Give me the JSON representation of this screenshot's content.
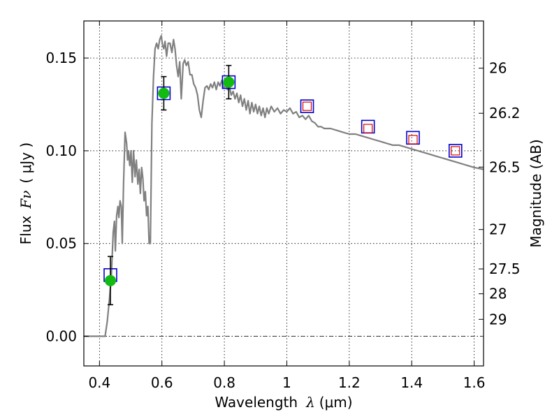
{
  "chart_data": {
    "type": "scatter",
    "xlabel": {
      "text": "Wavelength",
      "symbol": "λ",
      "unit": "(μm)"
    },
    "ylabel": {
      "text": "Flux",
      "symbol": "Fν",
      "unit": "( μJy )"
    },
    "ylabel_right": "Magnitude (AB)",
    "xlim": [
      0.35,
      1.63
    ],
    "ylim": [
      -0.016,
      0.17
    ],
    "grid": true,
    "x_ticks": [
      {
        "v": 0.4,
        "label": "0.4"
      },
      {
        "v": 0.6,
        "label": "0.6"
      },
      {
        "v": 0.8,
        "label": "0.8"
      },
      {
        "v": 1.0,
        "label": "1"
      },
      {
        "v": 1.2,
        "label": "1.2"
      },
      {
        "v": 1.4,
        "label": "1.4"
      },
      {
        "v": 1.6,
        "label": "1.6"
      }
    ],
    "y_ticks": [
      {
        "v": 0.0,
        "label": "0.00"
      },
      {
        "v": 0.05,
        "label": "0.05"
      },
      {
        "v": 0.1,
        "label": "0.10"
      },
      {
        "v": 0.15,
        "label": "0.15"
      }
    ],
    "right_ticks": [
      {
        "label": "26",
        "mag": 26.0
      },
      {
        "label": "26.2",
        "mag": 26.2
      },
      {
        "label": "26.5",
        "mag": 26.5
      },
      {
        "label": "27",
        "mag": 27.0
      },
      {
        "label": "27.5",
        "mag": 27.5
      },
      {
        "label": "28",
        "mag": 28.0
      },
      {
        "label": "29",
        "mag": 29.0
      }
    ],
    "model_sed": {
      "color": "#808080",
      "points": [
        [
          0.35,
          0.0
        ],
        [
          0.418,
          0.0
        ],
        [
          0.425,
          0.008
        ],
        [
          0.432,
          0.02
        ],
        [
          0.438,
          0.032
        ],
        [
          0.444,
          0.056
        ],
        [
          0.448,
          0.062
        ],
        [
          0.451,
          0.046
        ],
        [
          0.455,
          0.065
        ],
        [
          0.459,
          0.07
        ],
        [
          0.462,
          0.064
        ],
        [
          0.466,
          0.073
        ],
        [
          0.47,
          0.07
        ],
        [
          0.473,
          0.05
        ],
        [
          0.477,
          0.082
        ],
        [
          0.482,
          0.11
        ],
        [
          0.487,
          0.104
        ],
        [
          0.49,
          0.095
        ],
        [
          0.493,
          0.1
        ],
        [
          0.497,
          0.092
        ],
        [
          0.501,
          0.1
        ],
        [
          0.505,
          0.083
        ],
        [
          0.509,
          0.1
        ],
        [
          0.514,
          0.086
        ],
        [
          0.518,
          0.095
        ],
        [
          0.523,
          0.082
        ],
        [
          0.527,
          0.09
        ],
        [
          0.531,
          0.077
        ],
        [
          0.535,
          0.091
        ],
        [
          0.539,
          0.085
        ],
        [
          0.543,
          0.073
        ],
        [
          0.547,
          0.078
        ],
        [
          0.551,
          0.065
        ],
        [
          0.555,
          0.07
        ],
        [
          0.559,
          0.05
        ],
        [
          0.563,
          0.05
        ],
        [
          0.568,
          0.115
        ],
        [
          0.573,
          0.14
        ],
        [
          0.578,
          0.155
        ],
        [
          0.583,
          0.158
        ],
        [
          0.588,
          0.155
        ],
        [
          0.593,
          0.16
        ],
        [
          0.598,
          0.162
        ],
        [
          0.602,
          0.157
        ],
        [
          0.606,
          0.155
        ],
        [
          0.61,
          0.159
        ],
        [
          0.615,
          0.151
        ],
        [
          0.62,
          0.158
        ],
        [
          0.626,
          0.158
        ],
        [
          0.632,
          0.153
        ],
        [
          0.637,
          0.16
        ],
        [
          0.642,
          0.155
        ],
        [
          0.647,
          0.146
        ],
        [
          0.652,
          0.14
        ],
        [
          0.657,
          0.148
        ],
        [
          0.662,
          0.128
        ],
        [
          0.668,
          0.147
        ],
        [
          0.673,
          0.149
        ],
        [
          0.678,
          0.146
        ],
        [
          0.684,
          0.148
        ],
        [
          0.69,
          0.141
        ],
        [
          0.696,
          0.141
        ],
        [
          0.702,
          0.136
        ],
        [
          0.708,
          0.134
        ],
        [
          0.714,
          0.13
        ],
        [
          0.72,
          0.122
        ],
        [
          0.726,
          0.118
        ],
        [
          0.732,
          0.127
        ],
        [
          0.738,
          0.134
        ],
        [
          0.744,
          0.135
        ],
        [
          0.75,
          0.133
        ],
        [
          0.756,
          0.136
        ],
        [
          0.762,
          0.134
        ],
        [
          0.768,
          0.137
        ],
        [
          0.774,
          0.133
        ],
        [
          0.78,
          0.137
        ],
        [
          0.786,
          0.135
        ],
        [
          0.792,
          0.138
        ],
        [
          0.798,
          0.134
        ],
        [
          0.804,
          0.135
        ],
        [
          0.81,
          0.133
        ],
        [
          0.816,
          0.135
        ],
        [
          0.822,
          0.13
        ],
        [
          0.828,
          0.132
        ],
        [
          0.834,
          0.128
        ],
        [
          0.84,
          0.131
        ],
        [
          0.846,
          0.126
        ],
        [
          0.852,
          0.13
        ],
        [
          0.858,
          0.124
        ],
        [
          0.864,
          0.128
        ],
        [
          0.87,
          0.122
        ],
        [
          0.876,
          0.127
        ],
        [
          0.882,
          0.12
        ],
        [
          0.888,
          0.126
        ],
        [
          0.894,
          0.121
        ],
        [
          0.9,
          0.125
        ],
        [
          0.906,
          0.12
        ],
        [
          0.912,
          0.124
        ],
        [
          0.918,
          0.119
        ],
        [
          0.924,
          0.123
        ],
        [
          0.93,
          0.118
        ],
        [
          0.936,
          0.123
        ],
        [
          0.942,
          0.12
        ],
        [
          0.95,
          0.124
        ],
        [
          0.96,
          0.121
        ],
        [
          0.97,
          0.123
        ],
        [
          0.98,
          0.12
        ],
        [
          0.99,
          0.122
        ],
        [
          1.0,
          0.121
        ],
        [
          1.01,
          0.123
        ],
        [
          1.02,
          0.12
        ],
        [
          1.03,
          0.121
        ],
        [
          1.04,
          0.118
        ],
        [
          1.05,
          0.119
        ],
        [
          1.06,
          0.117
        ],
        [
          1.07,
          0.119
        ],
        [
          1.08,
          0.116
        ],
        [
          1.09,
          0.115
        ],
        [
          1.1,
          0.113
        ],
        [
          1.11,
          0.113
        ],
        [
          1.12,
          0.112
        ],
        [
          1.14,
          0.112
        ],
        [
          1.16,
          0.111
        ],
        [
          1.18,
          0.11
        ],
        [
          1.2,
          0.109
        ],
        [
          1.22,
          0.109
        ],
        [
          1.24,
          0.108
        ],
        [
          1.26,
          0.107
        ],
        [
          1.28,
          0.106
        ],
        [
          1.3,
          0.105
        ],
        [
          1.32,
          0.104
        ],
        [
          1.34,
          0.103
        ],
        [
          1.36,
          0.103
        ],
        [
          1.38,
          0.102
        ],
        [
          1.4,
          0.101
        ],
        [
          1.42,
          0.1
        ],
        [
          1.44,
          0.099
        ],
        [
          1.46,
          0.098
        ],
        [
          1.48,
          0.097
        ],
        [
          1.5,
          0.096
        ],
        [
          1.52,
          0.095
        ],
        [
          1.54,
          0.094
        ],
        [
          1.56,
          0.093
        ],
        [
          1.58,
          0.092
        ],
        [
          1.6,
          0.091
        ],
        [
          1.63,
          0.09
        ]
      ]
    },
    "model_boxes": {
      "color": "#0000cc",
      "points": [
        {
          "x": 0.435,
          "y": 0.033
        },
        {
          "x": 0.606,
          "y": 0.131
        },
        {
          "x": 0.814,
          "y": 0.137
        },
        {
          "x": 1.065,
          "y": 0.124
        },
        {
          "x": 1.26,
          "y": 0.113
        },
        {
          "x": 1.404,
          "y": 0.107
        },
        {
          "x": 1.54,
          "y": 0.1
        }
      ]
    },
    "upper_limits": {
      "color": "#dd0000",
      "points": [
        {
          "x": 1.065,
          "y": 0.124
        },
        {
          "x": 1.26,
          "y": 0.112
        },
        {
          "x": 1.404,
          "y": 0.106
        },
        {
          "x": 1.54,
          "y": 0.1
        }
      ]
    },
    "detections": {
      "color": "#11bb11",
      "points": [
        {
          "x": 0.435,
          "y": 0.03,
          "yerr": 0.013
        },
        {
          "x": 0.606,
          "y": 0.131,
          "yerr": 0.009
        },
        {
          "x": 0.814,
          "y": 0.137,
          "yerr": 0.009
        }
      ]
    }
  }
}
